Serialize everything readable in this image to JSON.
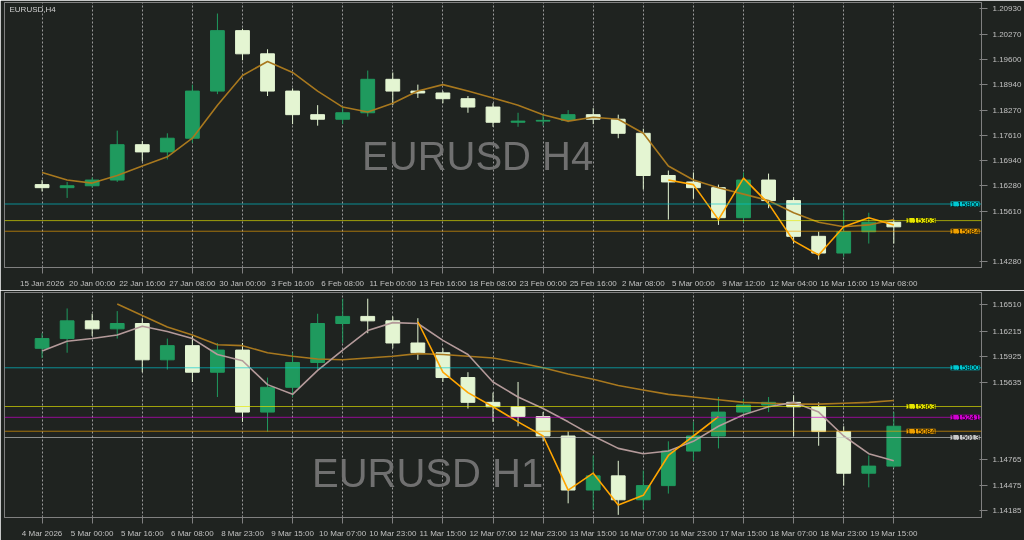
{
  "chart_data": [
    {
      "type": "candlestick",
      "title": "EURUSD,H4",
      "annotations": [
        "EURUSD H4"
      ],
      "grid": "x",
      "categories": [
        "15 Jan 2026",
        null,
        "20 Jan 00:00",
        null,
        "22 Jan 16:00",
        null,
        "27 Jan 08:00",
        null,
        "30 Jan 00:00",
        null,
        "3 Feb 16:00",
        null,
        "6 Feb 08:00",
        null,
        "11 Feb 00:00",
        null,
        "13 Feb 16:00",
        null,
        "18 Feb 08:00",
        null,
        "23 Feb 00:00",
        null,
        "25 Feb 16:00",
        null,
        "2 Mar 08:00",
        null,
        "5 Mar 00:00",
        null,
        "9 Mar 12:00",
        null,
        "12 Mar 04:00",
        null,
        "16 Mar 16:00",
        null,
        "19 Mar 08:00",
        null,
        null,
        null
      ],
      "ohlc": [
        [
          1.1631,
          1.1643,
          1.1613,
          1.1623
        ],
        [
          1.1623,
          1.1638,
          1.1596,
          1.1628
        ],
        [
          1.1628,
          1.165,
          1.1623,
          1.1643
        ],
        [
          1.1643,
          1.1773,
          1.1638,
          1.1736
        ],
        [
          1.1736,
          1.1746,
          1.1692,
          1.1717
        ],
        [
          1.1717,
          1.1766,
          1.1697,
          1.1753
        ],
        [
          1.1753,
          1.1894,
          1.1741,
          1.1877
        ],
        [
          1.1877,
          1.2081,
          1.1869,
          1.2036
        ],
        [
          1.2036,
          1.2041,
          1.1958,
          1.1975
        ],
        [
          1.1975,
          1.1987,
          1.1864,
          1.1877
        ],
        [
          1.1877,
          1.1884,
          1.179,
          1.1815
        ],
        [
          1.1815,
          1.184,
          1.1786,
          1.1803
        ],
        [
          1.1803,
          1.1835,
          1.179,
          1.182
        ],
        [
          1.182,
          1.1931,
          1.181,
          1.1908
        ],
        [
          1.1908,
          1.1926,
          1.184,
          1.1877
        ],
        [
          1.1877,
          1.1894,
          1.1859,
          1.1872
        ],
        [
          1.1872,
          1.1877,
          1.1845,
          1.1857
        ],
        [
          1.1857,
          1.1864,
          1.182,
          1.1835
        ],
        [
          1.1835,
          1.1845,
          1.1783,
          1.1795
        ],
        [
          1.1795,
          1.182,
          1.1783,
          1.1798
        ],
        [
          1.1798,
          1.1815,
          1.1786,
          1.18
        ],
        [
          1.18,
          1.1827,
          1.1795,
          1.1815
        ],
        [
          1.1815,
          1.1832,
          1.179,
          1.1803
        ],
        [
          1.1803,
          1.1815,
          1.1753,
          1.1766
        ],
        [
          1.1766,
          1.1778,
          1.1618,
          1.1655
        ],
        [
          1.1655,
          1.1668,
          1.1539,
          1.1638
        ],
        [
          1.1638,
          1.1663,
          1.1594,
          1.1623
        ],
        [
          1.1623,
          1.1631,
          1.1525,
          1.1544
        ],
        [
          1.1544,
          1.1663,
          1.1532,
          1.1643
        ],
        [
          1.1643,
          1.166,
          1.1569,
          1.1589
        ],
        [
          1.1589,
          1.1598,
          1.1476,
          1.1495
        ],
        [
          1.1495,
          1.1507,
          1.1434,
          1.1451
        ],
        [
          1.1451,
          1.1564,
          1.1441,
          1.1507
        ],
        [
          1.1507,
          1.1557,
          1.1476,
          1.1532
        ],
        [
          1.1532,
          1.1539,
          1.1476,
          1.152
        ],
        null,
        null,
        null
      ],
      "colors": [
        "#e4f5d2",
        "#1f9a5e",
        "#1f9a5e",
        "#1f9a5e",
        "#e4f5d2",
        "#1f9a5e",
        "#1f9a5e",
        "#1f9a5e",
        "#e4f5d2",
        "#e4f5d2",
        "#e4f5d2",
        "#e4f5d2",
        "#1f9a5e",
        "#1f9a5e",
        "#e4f5d2",
        "#e4f5d2",
        "#e4f5d2",
        "#e4f5d2",
        "#e4f5d2",
        "#1f9a5e",
        "#1f9a5e",
        "#1f9a5e",
        "#e4f5d2",
        "#e4f5d2",
        "#e4f5d2",
        "#e4f5d2",
        "#e4f5d2",
        "#e4f5d2",
        "#1f9a5e",
        "#e4f5d2",
        "#e4f5d2",
        "#e4f5d2",
        "#1f9a5e",
        "#1f9a5e",
        "#e4f5d2",
        null,
        null,
        null
      ],
      "series": [
        {
          "type": "line",
          "color": "#a8781e",
          "values": [
            1.1663,
            1.1643,
            1.1635,
            1.1655,
            1.168,
            1.1704,
            1.1753,
            1.184,
            1.1918,
            1.1955,
            1.1926,
            1.1877,
            1.1835,
            1.1822,
            1.1845,
            1.1877,
            1.1894,
            1.1877,
            1.1859,
            1.184,
            1.1815,
            1.1798,
            1.1808,
            1.1803,
            1.1766,
            1.168,
            1.1643,
            1.1623,
            1.1606,
            1.1589,
            1.1557,
            1.1532,
            1.152,
            1.1525,
            1.1539,
            null,
            null,
            null
          ]
        },
        {
          "type": "line",
          "color": "#ffa500",
          "values": [
            null,
            null,
            null,
            null,
            null,
            null,
            null,
            null,
            null,
            null,
            null,
            null,
            null,
            null,
            null,
            null,
            null,
            null,
            null,
            null,
            null,
            null,
            null,
            null,
            null,
            1.1643,
            1.1631,
            1.1539,
            1.1648,
            1.1581,
            1.1483,
            1.1446,
            1.152,
            1.1544,
            1.1525,
            null,
            null,
            null
          ]
        }
      ],
      "ref_lines": [
        {
          "axis": "y",
          "value": 1.158,
          "label": "1.15800",
          "color": "#00c8d2"
        },
        {
          "axis": "y",
          "value": 1.15363,
          "label": "1.15363",
          "color": "#e6e600"
        },
        {
          "axis": "y",
          "value": 1.15084,
          "label": "1.15084",
          "color": "#f0a000"
        }
      ],
      "ylim": [
        1.1413,
        1.211
      ],
      "yticks": [
        {
          "value": 1.2093,
          "label": "1.20930"
        },
        {
          "value": 1.2027,
          "label": "1.20270"
        },
        {
          "value": 1.196,
          "label": "1.19600"
        },
        {
          "value": 1.1894,
          "label": "1.18940"
        },
        {
          "value": 1.1827,
          "label": "1.18270"
        },
        {
          "value": 1.1761,
          "label": "1.17610"
        },
        {
          "value": 1.1694,
          "label": "1.16940"
        },
        {
          "value": 1.1628,
          "label": "1.16280"
        },
        {
          "value": 1.1561,
          "label": "1.15610"
        },
        {
          "value": 1.1428,
          "label": "1.14280"
        }
      ]
    },
    {
      "type": "candlestick",
      "annotations": [
        "EURUSD H1"
      ],
      "grid": "x",
      "categories": [
        "4 Mar 2026",
        null,
        "5 Mar 00:00",
        null,
        "5 Mar 16:00",
        null,
        "6 Mar 08:00",
        null,
        "8 Mar 23:00",
        null,
        "9 Mar 15:00",
        null,
        "10 Mar 07:00",
        null,
        "10 Mar 23:00",
        null,
        "11 Mar 15:00",
        null,
        "12 Mar 07:00",
        null,
        "12 Mar 23:00",
        null,
        "13 Mar 15:00",
        null,
        "16 Mar 07:00",
        null,
        "16 Mar 23:00",
        null,
        "17 Mar 15:00",
        null,
        "18 Mar 07:00",
        null,
        "18 Mar 23:00",
        null,
        "19 Mar 15:00",
        null,
        null,
        null
      ],
      "ohlc": [
        [
          1.1602,
          1.1619,
          1.1591,
          1.1613
        ],
        [
          1.1613,
          1.1647,
          1.1597,
          1.1633
        ],
        [
          1.1633,
          1.1641,
          1.1616,
          1.1624
        ],
        [
          1.1624,
          1.1644,
          1.1613,
          1.163
        ],
        [
          1.163,
          1.1636,
          1.1575,
          1.1589
        ],
        [
          1.1589,
          1.1613,
          1.1578,
          1.1605
        ],
        [
          1.1605,
          1.1616,
          1.1564,
          1.1575
        ],
        [
          1.1575,
          1.1608,
          1.1547,
          1.16
        ],
        [
          1.16,
          1.1608,
          1.1519,
          1.153
        ],
        [
          1.153,
          1.1569,
          1.1508,
          1.1558
        ],
        [
          1.1558,
          1.1597,
          1.1547,
          1.1586
        ],
        [
          1.1586,
          1.1641,
          1.1578,
          1.163
        ],
        [
          1.163,
          1.1658,
          1.1608,
          1.1638
        ],
        [
          1.1638,
          1.1658,
          1.1619,
          1.1633
        ],
        [
          1.1633,
          1.1638,
          1.1602,
          1.1608
        ],
        [
          1.1608,
          1.1636,
          1.1589,
          1.1597
        ],
        [
          1.1597,
          1.1602,
          1.1564,
          1.1569
        ],
        [
          1.1569,
          1.1575,
          1.1534,
          1.1541
        ],
        [
          1.1541,
          1.1552,
          1.1519,
          1.1536
        ],
        [
          1.1536,
          1.1564,
          1.1514,
          1.1525
        ],
        [
          1.1525,
          1.153,
          1.1497,
          1.1503
        ],
        [
          1.1503,
          1.1508,
          1.1427,
          1.1442
        ],
        [
          1.1442,
          1.1481,
          1.142,
          1.1458
        ],
        [
          1.1458,
          1.1475,
          1.1414,
          1.1431
        ],
        [
          1.1431,
          1.1464,
          1.142,
          1.1447
        ],
        [
          1.1447,
          1.1497,
          1.1438,
          1.1486
        ],
        [
          1.1486,
          1.1519,
          1.1475,
          1.1503
        ],
        [
          1.1503,
          1.1547,
          1.1489,
          1.153
        ],
        [
          1.153,
          1.1545,
          1.1527,
          1.1538
        ],
        [
          1.1538,
          1.1547,
          1.153,
          1.1541
        ],
        [
          1.1541,
          1.1549,
          1.1503,
          1.1536
        ],
        [
          1.1536,
          1.1541,
          1.1492,
          1.1508
        ],
        [
          1.1508,
          1.1514,
          1.1447,
          1.1461
        ],
        [
          1.1461,
          1.1481,
          1.1445,
          1.1469
        ],
        [
          1.1469,
          1.153,
          1.1467,
          1.1514
        ],
        null,
        null,
        null
      ],
      "colors": [
        "#1f9a5e",
        "#1f9a5e",
        "#e4f5d2",
        "#1f9a5e",
        "#e4f5d2",
        "#1f9a5e",
        "#e4f5d2",
        "#1f9a5e",
        "#e4f5d2",
        "#1f9a5e",
        "#1f9a5e",
        "#1f9a5e",
        "#1f9a5e",
        "#e4f5d2",
        "#e4f5d2",
        "#e4f5d2",
        "#e4f5d2",
        "#e4f5d2",
        "#e4f5d2",
        "#e4f5d2",
        "#e4f5d2",
        "#e4f5d2",
        "#1f9a5e",
        "#e4f5d2",
        "#1f9a5e",
        "#1f9a5e",
        "#1f9a5e",
        "#1f9a5e",
        "#1f9a5e",
        "#1f9a5e",
        "#e4f5d2",
        "#e4f5d2",
        "#e4f5d2",
        "#1f9a5e",
        "#1f9a5e",
        null,
        null,
        null
      ],
      "series": [
        {
          "type": "line",
          "color": "#a8781e",
          "values": [
            null,
            null,
            null,
            1.1652,
            1.1639,
            1.1626,
            1.1617,
            1.1606,
            1.1605,
            1.1597,
            1.1593,
            1.159,
            1.1589,
            1.1591,
            1.1593,
            1.1596,
            1.1595,
            1.1593,
            1.1591,
            1.1586,
            1.158,
            1.1573,
            1.1567,
            1.156,
            1.1555,
            1.155,
            1.1547,
            1.1544,
            1.1541,
            1.154,
            1.1539,
            1.1539,
            1.154,
            1.1541,
            1.1543,
            null,
            null,
            null
          ]
        },
        {
          "type": "line",
          "color": "#b49a9a",
          "values": [
            1.1599,
            1.161,
            1.1613,
            1.1617,
            1.1627,
            1.1621,
            1.1613,
            1.1595,
            1.1588,
            1.1561,
            1.155,
            1.1577,
            1.16,
            1.1622,
            1.1631,
            1.163,
            1.1611,
            1.1595,
            1.1564,
            1.1547,
            1.1534,
            1.1519,
            1.1503,
            1.1489,
            1.1483,
            1.1486,
            1.1497,
            1.1514,
            1.1527,
            1.1536,
            1.1541,
            1.153,
            1.1503,
            1.1483,
            1.1475,
            null,
            null,
            null
          ]
        },
        {
          "type": "line",
          "color": "#ffa500",
          "values": [
            null,
            null,
            null,
            null,
            null,
            null,
            null,
            null,
            null,
            null,
            null,
            null,
            null,
            null,
            null,
            1.1632,
            1.1575,
            1.1552,
            1.1536,
            1.1519,
            1.1503,
            1.1442,
            1.1461,
            1.1425,
            1.1436,
            1.1481,
            1.1503,
            1.1525,
            null,
            null,
            null,
            null,
            null,
            null,
            null,
            null,
            null,
            null
          ]
        }
      ],
      "ref_lines": [
        {
          "axis": "y",
          "value": 1.158,
          "label": "1.15800",
          "color": "#00c8d2"
        },
        {
          "axis": "y",
          "value": 1.15363,
          "label": "1.15363",
          "color": "#e6e600"
        },
        {
          "axis": "y",
          "value": 1.15241,
          "label": "1.15241",
          "color": "#d000d0"
        },
        {
          "axis": "y",
          "value": 1.15084,
          "label": "1.15084",
          "color": "#f0a000"
        },
        {
          "axis": "y",
          "value": 1.15013,
          "label": "1.15013",
          "color": "#c8c8c8"
        }
      ],
      "ylim": [
        1.1411,
        1.1665
      ],
      "yticks": [
        {
          "value": 1.1651,
          "label": "1.16510"
        },
        {
          "value": 1.16215,
          "label": "1.16215"
        },
        {
          "value": 1.15925,
          "label": "1.15925"
        },
        {
          "value": 1.15635,
          "label": "1.15635"
        },
        {
          "value": 1.14765,
          "label": "1.14765"
        },
        {
          "value": 1.14475,
          "label": "1.14475"
        },
        {
          "value": 1.14185,
          "label": "1.14185"
        }
      ]
    }
  ]
}
